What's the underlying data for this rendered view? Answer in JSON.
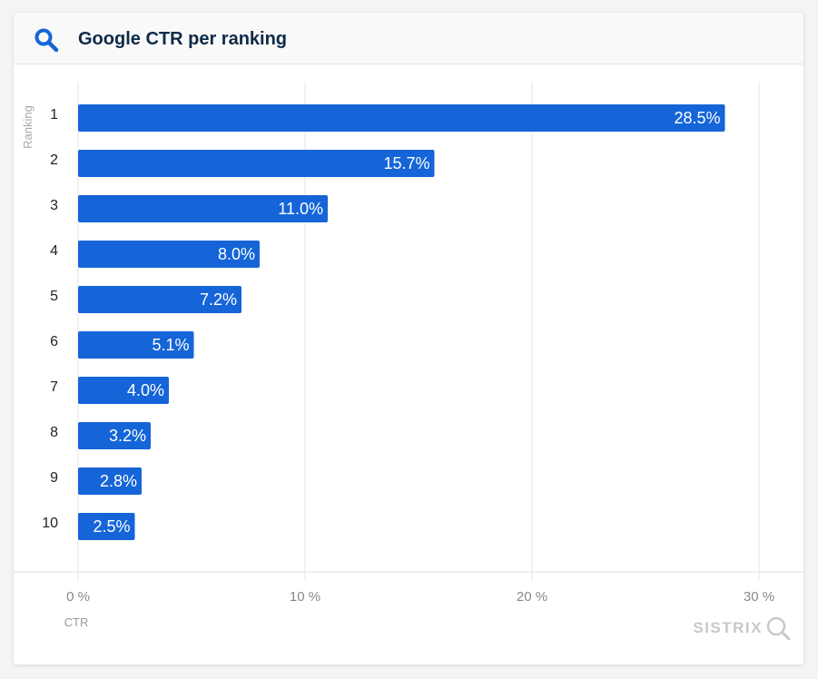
{
  "header": {
    "title": "Google CTR per ranking",
    "icon": "search-icon"
  },
  "brand": {
    "name": "SISTRIX",
    "icon": "magnifier-icon"
  },
  "colors": {
    "bar": "#1565d8",
    "title": "#0e2a47",
    "axis_text": "#888888",
    "grid": "#e6e6e6",
    "brand": "#c8c8c8"
  },
  "chart_data": {
    "type": "bar",
    "orientation": "horizontal",
    "title": "Google CTR per ranking",
    "xlabel": "CTR",
    "ylabel": "Ranking",
    "categories": [
      "1",
      "2",
      "3",
      "4",
      "5",
      "6",
      "7",
      "8",
      "9",
      "10"
    ],
    "values": [
      28.5,
      15.7,
      11.0,
      8.0,
      7.2,
      5.1,
      4.0,
      3.2,
      2.8,
      2.5
    ],
    "data_labels": [
      "28.5%",
      "15.7%",
      "11.0%",
      "8.0%",
      "7.2%",
      "5.1%",
      "4.0%",
      "3.2%",
      "2.8%",
      "2.5%"
    ],
    "xlim": [
      0,
      30
    ],
    "xticks": [
      0,
      10,
      20,
      30
    ],
    "xtick_labels": [
      "0 %",
      "10 %",
      "20 %",
      "30 %"
    ],
    "grid": true,
    "legend": "none"
  }
}
